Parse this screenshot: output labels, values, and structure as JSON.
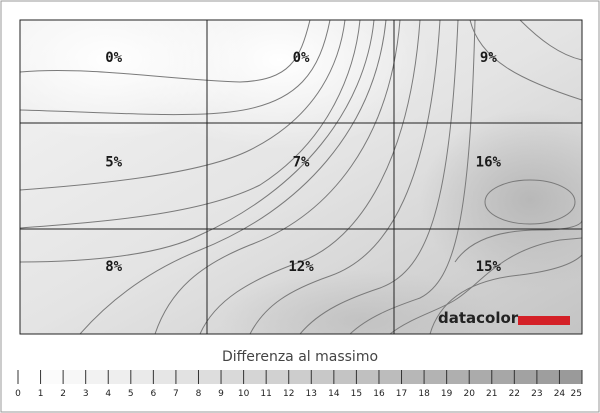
{
  "chart_data": {
    "type": "heatmap",
    "title": "",
    "rows": 3,
    "cols": 3,
    "cells": [
      {
        "row": 0,
        "col": 0,
        "value": 0,
        "label": "0%"
      },
      {
        "row": 0,
        "col": 1,
        "value": 0,
        "label": "0%"
      },
      {
        "row": 0,
        "col": 2,
        "value": 9,
        "label": "9%"
      },
      {
        "row": 1,
        "col": 0,
        "value": 5,
        "label": "5%"
      },
      {
        "row": 1,
        "col": 1,
        "value": 7,
        "label": "7%"
      },
      {
        "row": 1,
        "col": 2,
        "value": 16,
        "label": "16%"
      },
      {
        "row": 2,
        "col": 0,
        "value": 8,
        "label": "8%"
      },
      {
        "row": 2,
        "col": 1,
        "value": 12,
        "label": "12%"
      },
      {
        "row": 2,
        "col": 2,
        "value": 15,
        "label": "15%"
      }
    ],
    "scale": {
      "title": "Differenza al massimo",
      "min": 0,
      "max": 25,
      "ticks": [
        "0",
        "1",
        "2",
        "3",
        "4",
        "5",
        "6",
        "7",
        "8",
        "9",
        "10",
        "11",
        "12",
        "13",
        "14",
        "15",
        "16",
        "17",
        "18",
        "19",
        "20",
        "21",
        "22",
        "23",
        "24",
        "25"
      ],
      "color_low": "#ffffff",
      "color_high": "#9a9a9a"
    },
    "brand": "datacolor",
    "brand_color": "#d42027"
  }
}
